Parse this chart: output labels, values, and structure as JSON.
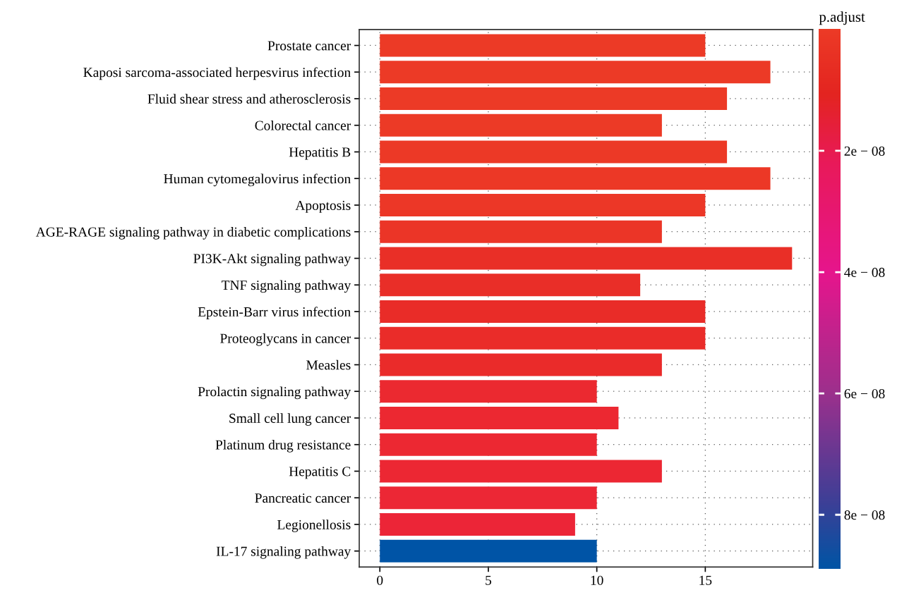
{
  "chart_data": {
    "type": "bar",
    "orientation": "horizontal",
    "categories": [
      "Prostate cancer",
      "Kaposi sarcoma-associated herpesvirus infection",
      "Fluid shear stress and atherosclerosis",
      "Colorectal cancer",
      "Hepatitis B",
      "Human cytomegalovirus infection",
      "Apoptosis",
      "AGE-RAGE signaling pathway in diabetic complications",
      "PI3K-Akt signaling pathway",
      "TNF signaling pathway",
      "Epstein-Barr virus infection",
      "Proteoglycans in cancer",
      "Measles",
      "Prolactin signaling pathway",
      "Small cell lung cancer",
      "Platinum drug resistance",
      "Hepatitis C",
      "Pancreatic cancer",
      "Legionellosis",
      "IL-17 signaling pathway"
    ],
    "values": [
      15,
      18,
      16,
      13,
      16,
      18,
      15,
      13,
      19,
      12,
      15,
      15,
      13,
      10,
      11,
      10,
      13,
      10,
      9,
      10
    ],
    "colors": [
      "#ec3a26",
      "#ec3a26",
      "#ec3a26",
      "#ec3a26",
      "#ec3926",
      "#ec3826",
      "#ec3727",
      "#eb3527",
      "#e92f27",
      "#e92e28",
      "#e92c28",
      "#ea2c29",
      "#ea2b2a",
      "#eb2930",
      "#ec2831",
      "#ec2832",
      "#ec2733",
      "#ec2735",
      "#ec2537",
      "#0054a6"
    ],
    "xlim": [
      -0.95,
      19.95
    ],
    "xticks": [
      0,
      5,
      10,
      15
    ],
    "grid": true,
    "clabel": "p.adjust",
    "clim": [
      0,
      8.9e-08
    ],
    "cticks": [
      {
        "value": 2e-08,
        "label": "2e − 08"
      },
      {
        "value": 4e-08,
        "label": "4e − 08"
      },
      {
        "value": 6e-08,
        "label": "6e − 08"
      },
      {
        "value": 8e-08,
        "label": "8e − 08"
      }
    ]
  }
}
